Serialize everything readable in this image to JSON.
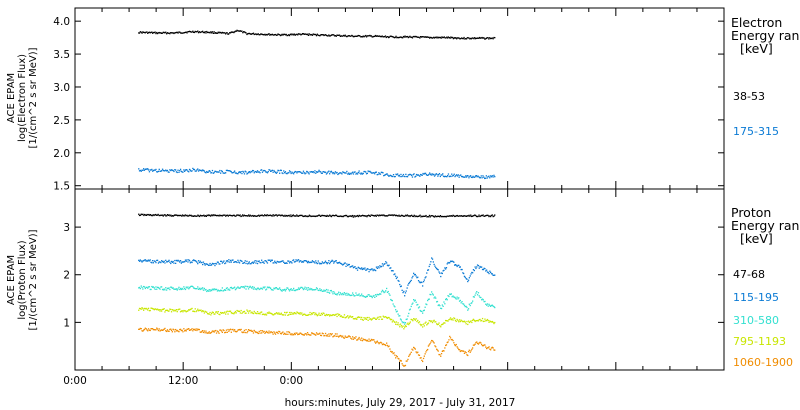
{
  "chart_data": [
    {
      "type": "scatter",
      "panel": "electron",
      "ylabel_lines": [
        "ACE EPAM",
        "log(Electron Flux)",
        "[1/(cm^2 s sr MeV)]"
      ],
      "ylim": [
        1.45,
        4.2
      ],
      "yticks": [
        1.5,
        2.0,
        2.5,
        3.0,
        3.5,
        4.0
      ],
      "ytick_labels": [
        "1.5",
        "2.0",
        "2.5",
        "3.0",
        "3.5",
        "4.0"
      ],
      "legend_title_lines": [
        "Electron",
        "Energy ran",
        "[keV]"
      ],
      "series": [
        {
          "name": "38-53",
          "color": "#000000",
          "x": [
            7,
            9,
            11,
            13,
            15,
            17,
            18,
            19,
            21,
            23,
            25,
            27,
            29,
            31,
            33,
            35,
            37,
            39,
            41,
            43,
            45,
            46.5
          ],
          "y": [
            3.84,
            3.83,
            3.83,
            3.85,
            3.84,
            3.82,
            3.87,
            3.82,
            3.81,
            3.8,
            3.81,
            3.8,
            3.79,
            3.78,
            3.78,
            3.77,
            3.77,
            3.76,
            3.76,
            3.75,
            3.75,
            3.75
          ]
        },
        {
          "name": "175-315",
          "color": "#0a7ad4",
          "x": [
            7,
            9,
            11,
            13,
            15,
            17,
            19,
            21,
            23,
            25,
            27,
            29,
            31,
            33,
            35,
            37,
            39,
            41,
            43,
            45,
            46.5
          ],
          "y": [
            1.75,
            1.74,
            1.73,
            1.75,
            1.72,
            1.72,
            1.71,
            1.73,
            1.72,
            1.71,
            1.72,
            1.7,
            1.71,
            1.71,
            1.67,
            1.66,
            1.68,
            1.67,
            1.65,
            1.64,
            1.65
          ]
        }
      ]
    },
    {
      "type": "scatter",
      "panel": "proton",
      "ylabel_lines": [
        "ACE EPAM",
        "log(Proton Flux)",
        "[1/(cm^2 s sr MeV)]"
      ],
      "ylim": [
        0,
        3.8
      ],
      "yticks": [
        1,
        2,
        3
      ],
      "ytick_labels": [
        "1",
        "2",
        "3"
      ],
      "xticks": [
        0,
        12,
        24
      ],
      "xtick_labels": [
        "0:00",
        "12:00",
        "0:00"
      ],
      "xlim": [
        0,
        72
      ],
      "xlabel": "hours:minutes, July 29, 2017 - July 31, 2017",
      "legend_title_lines": [
        "Proton",
        "Energy ran",
        "[keV]"
      ],
      "series": [
        {
          "name": "47-68",
          "color": "#000000",
          "x": [
            7,
            10,
            13,
            16,
            19,
            22,
            25,
            28,
            31,
            34,
            37,
            40,
            43,
            46.5
          ],
          "y": [
            3.27,
            3.26,
            3.25,
            3.26,
            3.25,
            3.26,
            3.25,
            3.25,
            3.24,
            3.26,
            3.25,
            3.24,
            3.25,
            3.25
          ]
        },
        {
          "name": "115-195",
          "color": "#0a7ad4",
          "x": [
            7,
            9,
            11,
            13,
            15,
            17,
            19,
            21,
            23,
            25,
            27,
            29,
            31,
            33,
            34.5,
            35.5,
            36.5,
            37.5,
            38.5,
            39.5,
            40.5,
            41.5,
            42.5,
            43.5,
            44.5,
            45.5,
            46.5
          ],
          "y": [
            2.31,
            2.29,
            2.28,
            2.3,
            2.22,
            2.3,
            2.27,
            2.29,
            2.28,
            2.3,
            2.27,
            2.29,
            2.15,
            2.1,
            2.27,
            2.0,
            1.6,
            2.05,
            1.8,
            2.35,
            2.0,
            2.3,
            2.2,
            1.9,
            2.2,
            2.1,
            2.0
          ]
        },
        {
          "name": "310-580",
          "color": "#33e0d0",
          "x": [
            7,
            9,
            11,
            13,
            15,
            17,
            19,
            21,
            23,
            25,
            27,
            29,
            31,
            33,
            34.5,
            35.5,
            36.5,
            37.5,
            38.5,
            39.5,
            40.5,
            41.5,
            42.5,
            43.5,
            44.5,
            45.5,
            46.5
          ],
          "y": [
            1.75,
            1.73,
            1.72,
            1.74,
            1.68,
            1.72,
            1.74,
            1.73,
            1.7,
            1.72,
            1.71,
            1.62,
            1.6,
            1.55,
            1.7,
            1.3,
            0.95,
            1.5,
            1.2,
            1.65,
            1.3,
            1.6,
            1.5,
            1.3,
            1.65,
            1.4,
            1.35
          ]
        },
        {
          "name": "795-1193",
          "color": "#c8e600",
          "x": [
            7,
            9,
            11,
            13,
            15,
            17,
            19,
            21,
            23,
            25,
            27,
            29,
            31,
            33,
            34.5,
            35.5,
            36.5,
            37.5,
            38.5,
            39.5,
            40.5,
            41.5,
            42.5,
            43.5,
            44.5,
            45.5,
            46.5
          ],
          "y": [
            1.3,
            1.28,
            1.25,
            1.28,
            1.2,
            1.22,
            1.24,
            1.2,
            1.19,
            1.2,
            1.18,
            1.17,
            1.1,
            1.08,
            1.12,
            1.0,
            0.9,
            1.1,
            0.95,
            1.05,
            0.95,
            1.1,
            1.05,
            1.0,
            1.08,
            1.05,
            1.0
          ]
        },
        {
          "name": "1060-1900",
          "color": "#f08c00",
          "x": [
            7,
            9,
            11,
            13,
            15,
            17,
            19,
            21,
            23,
            25,
            27,
            29,
            31,
            33,
            34.5,
            35.5,
            36.5,
            37.5,
            38.5,
            39.5,
            40.5,
            41.5,
            42.5,
            43.5,
            44.5,
            45.5,
            46.5
          ],
          "y": [
            0.85,
            0.87,
            0.84,
            0.86,
            0.8,
            0.84,
            0.83,
            0.8,
            0.79,
            0.77,
            0.76,
            0.74,
            0.68,
            0.62,
            0.55,
            0.3,
            0.1,
            0.5,
            0.2,
            0.65,
            0.3,
            0.7,
            0.45,
            0.35,
            0.6,
            0.5,
            0.45
          ]
        }
      ]
    }
  ]
}
